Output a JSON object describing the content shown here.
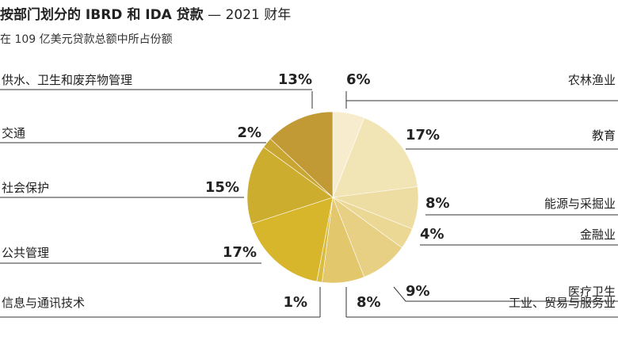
{
  "title": {
    "main": "按部门划分的 IBRD 和 IDA 贷款",
    "dash": " — ",
    "year": "2021 财年"
  },
  "subtitle": "在 109 亿美元贷款总额中所占份额",
  "chart_data": {
    "type": "pie",
    "unit": "%",
    "slices": [
      {
        "name": "农林渔业",
        "value": 6,
        "label": "6%",
        "color": "#F7EDCE"
      },
      {
        "name": "教育",
        "value": 17,
        "label": "17%",
        "color": "#F1E5B6"
      },
      {
        "name": "能源与采掘业",
        "value": 8,
        "label": "8%",
        "color": "#EEDDA3"
      },
      {
        "name": "金融业",
        "value": 4,
        "label": "4%",
        "color": "#EBD894"
      },
      {
        "name": "医疗卫生",
        "value": 9,
        "label": "9%",
        "color": "#E7D084"
      },
      {
        "name": "工业、贸易与服务业",
        "value": 8,
        "label": "8%",
        "color": "#E2C76C"
      },
      {
        "name": "信息与通讯技术",
        "value": 1,
        "label": "1%",
        "color": "#D9BC40"
      },
      {
        "name": "公共管理",
        "value": 17,
        "label": "17%",
        "color": "#D7B62C"
      },
      {
        "name": "社会保护",
        "value": 15,
        "label": "15%",
        "color": "#CDAD2E"
      },
      {
        "name": "交通",
        "value": 2,
        "label": "2%",
        "color": "#C9A632"
      },
      {
        "name": "供水、卫生和废弃物管理",
        "value": 13,
        "label": "13%",
        "color": "#C29A35"
      }
    ]
  }
}
